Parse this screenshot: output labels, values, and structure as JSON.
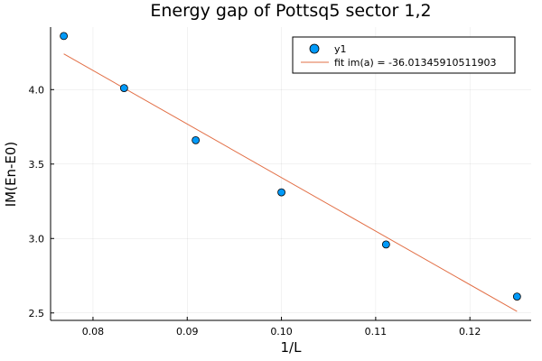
{
  "chart_data": {
    "type": "scatter",
    "title": "Energy gap of Pottsq5 sector 1,2",
    "xlabel": "1/L",
    "ylabel": "IM(En-E0)",
    "xlim": [
      0.0755,
      0.1265
    ],
    "ylim": [
      2.45,
      4.42
    ],
    "xticks": [
      0.08,
      0.09,
      0.1,
      0.11,
      0.12
    ],
    "xtick_labels": [
      "0.08",
      "0.09",
      "0.10",
      "0.11",
      "0.12"
    ],
    "yticks": [
      2.5,
      3.0,
      3.5,
      4.0
    ],
    "ytick_labels": [
      "2.5",
      "3.0",
      "3.5",
      "4.0"
    ],
    "grid": true,
    "legend_position": "top-right",
    "series": [
      {
        "name": "y1",
        "kind": "scatter",
        "color": "#009af9",
        "x": [
          0.0769,
          0.0833,
          0.0909,
          0.1,
          0.1111,
          0.125
        ],
        "y": [
          4.36,
          4.01,
          3.66,
          3.31,
          2.96,
          2.61
        ]
      },
      {
        "name": "fit im(a) = -36.01345910511903",
        "kind": "line",
        "color": "#e26f46",
        "x": [
          0.0769,
          0.125
        ],
        "y": [
          4.24,
          2.51
        ]
      }
    ]
  }
}
